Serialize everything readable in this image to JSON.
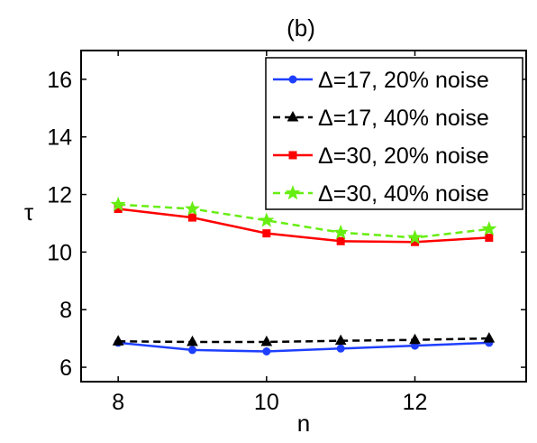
{
  "chart_data": {
    "type": "line",
    "title": "(b)",
    "xlabel": "n",
    "ylabel": "τ",
    "xlim": [
      7.5,
      13.5
    ],
    "ylim": [
      5.5,
      17
    ],
    "xticks": [
      8,
      10,
      12
    ],
    "yticks": [
      6,
      8,
      10,
      12,
      14,
      16
    ],
    "grid": false,
    "legend_position": "top-right",
    "x": [
      8,
      9,
      10,
      11,
      12,
      13
    ],
    "series": [
      {
        "name": "Δ=17, 20% noise",
        "color": "#1f3fff",
        "dash": "solid",
        "marker": "circle",
        "values": [
          6.85,
          6.6,
          6.55,
          6.65,
          6.75,
          6.85
        ]
      },
      {
        "name": "Δ=17, 40% noise",
        "color": "#000000",
        "dash": "dashed",
        "marker": "triangle",
        "values": [
          6.9,
          6.88,
          6.88,
          6.92,
          6.95,
          7.0
        ]
      },
      {
        "name": "Δ=30, 20% noise",
        "color": "#ff0000",
        "dash": "solid",
        "marker": "square",
        "values": [
          11.5,
          11.2,
          10.65,
          10.38,
          10.35,
          10.5
        ]
      },
      {
        "name": "Δ=30, 40% noise",
        "color": "#66ee11",
        "dash": "dashed",
        "marker": "star",
        "values": [
          11.65,
          11.5,
          11.1,
          10.68,
          10.5,
          10.8
        ]
      }
    ]
  }
}
